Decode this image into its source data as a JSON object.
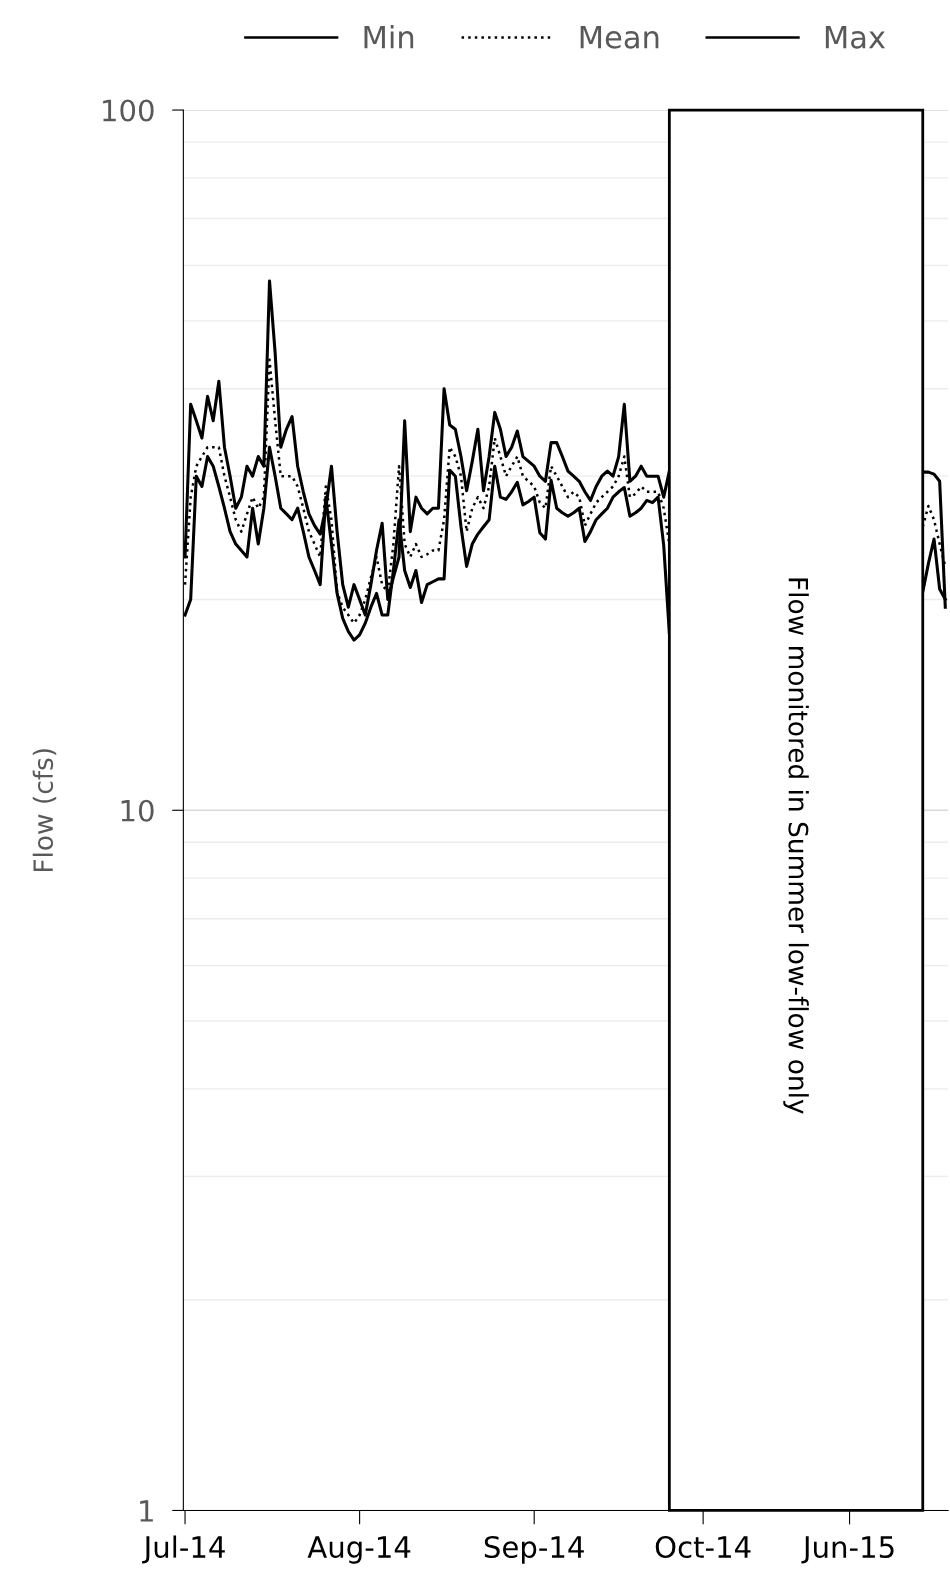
{
  "chart_data": {
    "type": "line",
    "ylabel": "Flow (cfs)",
    "log": "y",
    "grid": "y",
    "legend": "top",
    "marker": "none",
    "ylim": [
      1,
      100
    ],
    "yticks": [
      1,
      10,
      100
    ],
    "annotations": [
      "Flow monitored in Summer low-flow only"
    ],
    "categories": [
      "Jul-14",
      null,
      null,
      null,
      null,
      null,
      null,
      null,
      null,
      null,
      null,
      null,
      null,
      null,
      null,
      null,
      null,
      null,
      null,
      null,
      null,
      null,
      null,
      null,
      null,
      null,
      null,
      null,
      null,
      null,
      null,
      "Aug-14",
      null,
      null,
      null,
      null,
      null,
      null,
      null,
      null,
      null,
      null,
      null,
      null,
      null,
      null,
      null,
      null,
      null,
      null,
      null,
      null,
      null,
      null,
      null,
      null,
      null,
      null,
      null,
      null,
      null,
      null,
      "Sep-14",
      null,
      null,
      null,
      null,
      null,
      null,
      null,
      null,
      null,
      null,
      null,
      null,
      null,
      null,
      null,
      null,
      null,
      null,
      null,
      null,
      null,
      null,
      null,
      null,
      null,
      null,
      null,
      null,
      null,
      "Oct-14",
      null,
      null,
      null,
      null,
      null,
      null,
      null,
      null,
      null,
      null,
      null,
      null,
      null,
      null,
      null,
      null,
      null,
      null,
      null,
      null,
      null,
      null,
      null,
      null,
      null,
      "Jun-15",
      null,
      null,
      null,
      null,
      null,
      null,
      null,
      null,
      null,
      null,
      null,
      null,
      null,
      null,
      null,
      null,
      null
    ],
    "series": [
      {
        "name": "Min",
        "color": "#000000",
        "line_style": "solid",
        "values": [
          19,
          20,
          30,
          29,
          32,
          31,
          29,
          27,
          25,
          24,
          23.5,
          23,
          27,
          24,
          27,
          33,
          30,
          27,
          26.5,
          26,
          27,
          25,
          23,
          22,
          21,
          28,
          24,
          20.4,
          18.8,
          18,
          17.5,
          17.8,
          18.5,
          19.5,
          20.4,
          19,
          19,
          22,
          26,
          22,
          20.8,
          22,
          19.8,
          21,
          21.2,
          21.4,
          21.4,
          30.6,
          30,
          25.4,
          22.3,
          24,
          24.8,
          25.4,
          26,
          31,
          28,
          27.8,
          28.5,
          29.4,
          27.3,
          27.6,
          28,
          24.9,
          24.4,
          29.6,
          27,
          26.6,
          26.3,
          26.6,
          27,
          24.2,
          25,
          26,
          26.5,
          27,
          28,
          28.5,
          28.9,
          26.3,
          26.6,
          27,
          27.7,
          27.5,
          28,
          23.9,
          17.9,
          null,
          null,
          null,
          null,
          null,
          null,
          null,
          null,
          null,
          null,
          null,
          null,
          null,
          null,
          null,
          null,
          null,
          null,
          null,
          null,
          null,
          null,
          null,
          null,
          null,
          null,
          null,
          null,
          null,
          null,
          null,
          null,
          null,
          null,
          null,
          null,
          null,
          null,
          null,
          null,
          null,
          null,
          null,
          null,
          20.5,
          22.5,
          24.4,
          20.7,
          20
        ]
      },
      {
        "name": "Mean",
        "color": "#000000",
        "line_style": "dotted",
        "values": [
          21,
          28,
          31,
          32,
          33,
          33,
          33,
          30,
          28,
          26,
          25,
          26.5,
          28,
          27,
          28,
          44,
          36,
          30,
          30,
          30,
          29,
          27,
          25,
          24,
          23,
          29,
          26,
          20.5,
          19.5,
          19,
          18.5,
          19,
          20,
          21.5,
          23,
          21,
          20.5,
          24,
          31,
          24,
          23,
          24,
          23,
          23.2,
          23.5,
          23.5,
          26,
          33,
          32,
          30,
          25,
          27,
          28,
          27,
          29,
          34,
          32,
          30,
          31,
          32,
          30,
          29.5,
          29,
          27.5,
          27,
          31,
          30,
          29,
          28,
          28.5,
          28,
          25.5,
          26.5,
          27.5,
          28,
          28.5,
          29,
          30,
          32,
          28,
          28.3,
          29,
          28.5,
          28.5,
          28.5,
          27,
          24,
          null,
          null,
          null,
          null,
          null,
          null,
          null,
          null,
          null,
          null,
          null,
          null,
          null,
          null,
          null,
          null,
          null,
          null,
          null,
          null,
          null,
          null,
          null,
          null,
          null,
          null,
          null,
          null,
          null,
          null,
          null,
          null,
          null,
          null,
          null,
          null,
          null,
          null,
          null,
          null,
          null,
          null,
          null,
          null,
          25.4,
          27.2,
          26,
          24,
          22.3
        ]
      },
      {
        "name": "Max",
        "color": "#000000",
        "line_style": "solid",
        "values": [
          23,
          38,
          36,
          34,
          39,
          36,
          41,
          33,
          30,
          27,
          28,
          31,
          30,
          32,
          31,
          57,
          45,
          33,
          35,
          36.5,
          31,
          28.5,
          26.5,
          25.5,
          24.8,
          27,
          31,
          25,
          21,
          19.5,
          21,
          20,
          19,
          21,
          23.5,
          25.7,
          20,
          21.5,
          23,
          36,
          25,
          28,
          27,
          26.5,
          27,
          27,
          40,
          35.5,
          35,
          32,
          28.6,
          31.5,
          35,
          28.6,
          32,
          37,
          35,
          32,
          33,
          34.8,
          32,
          31.5,
          31,
          30,
          29.5,
          33.5,
          33.5,
          32,
          30.5,
          30,
          29.5,
          28.5,
          27.7,
          29,
          30,
          30.5,
          30,
          32,
          38,
          29.5,
          30,
          31,
          30,
          30,
          30,
          28,
          30.5,
          null,
          null,
          null,
          null,
          null,
          null,
          null,
          null,
          null,
          null,
          null,
          null,
          null,
          null,
          null,
          null,
          null,
          null,
          null,
          null,
          null,
          null,
          null,
          null,
          null,
          null,
          null,
          null,
          null,
          null,
          null,
          null,
          null,
          null,
          null,
          null,
          null,
          null,
          null,
          null,
          null,
          null,
          null,
          null,
          30.4,
          30.4,
          30.2,
          29.5,
          19.5
        ]
      }
    ]
  }
}
